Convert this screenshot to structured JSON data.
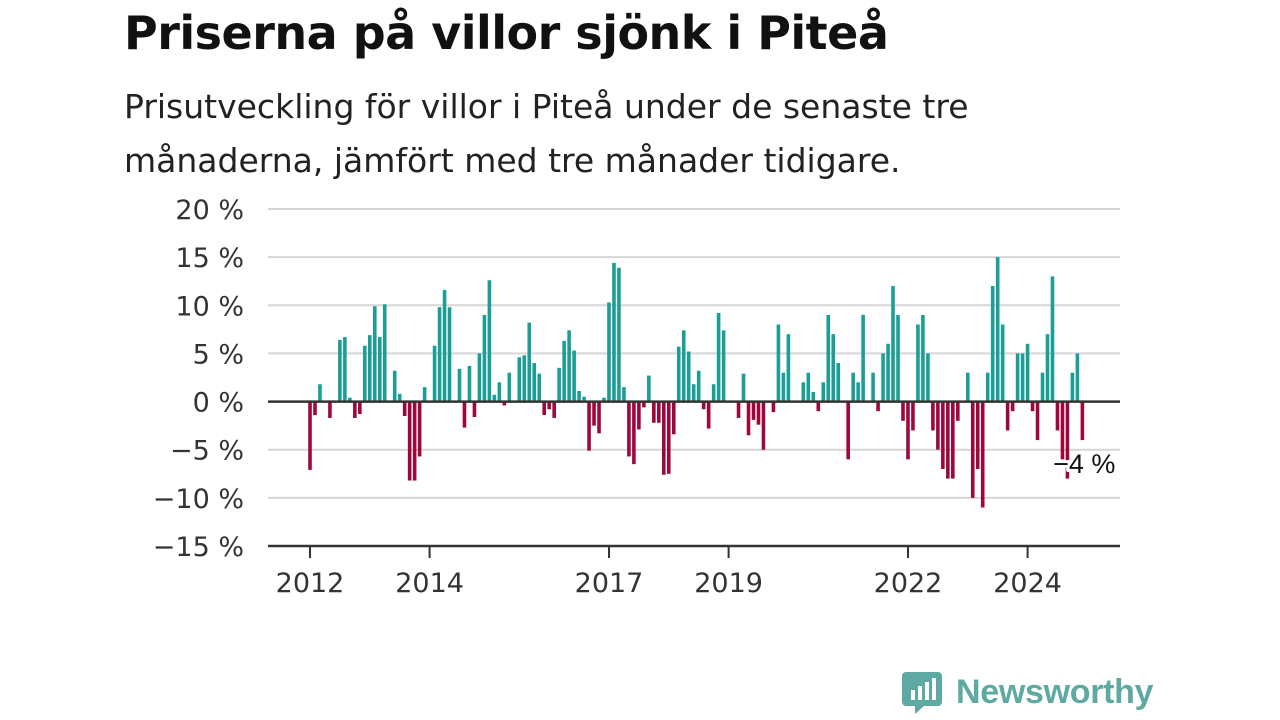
{
  "header": {
    "title": "Priserna på villor sjönk i Piteå",
    "subtitle": "Prisutveckling för villor i Piteå under de senaste tre månaderna, jämfört med tre månader tidigare."
  },
  "brand": {
    "name": "Newsworthy",
    "icon": "newsworthy-logo-icon",
    "color": "#5fa9a3"
  },
  "chart_data": {
    "type": "bar",
    "x_start": 2011.75,
    "x_step": 0.08333,
    "ylim": [
      -15,
      20
    ],
    "yticks": [
      -15,
      -10,
      -5,
      0,
      5,
      10,
      15,
      20
    ],
    "ytick_labels": [
      "−15 %",
      "−10 %",
      "−5 %",
      "0 %",
      "5 %",
      "10 %",
      "15 %",
      "20 %"
    ],
    "xticks": [
      2012,
      2014,
      2017,
      2019,
      2022,
      2024
    ],
    "xtick_labels": [
      "2012",
      "2014",
      "2017",
      "2019",
      "2022",
      "2024"
    ],
    "positive_color": "#1a9e96",
    "negative_color": "#a0063e",
    "grid": true,
    "annotation": {
      "text": "−4 %"
    },
    "values": [
      0,
      0,
      0,
      -7.1,
      -1.4,
      1.8,
      0,
      -1.7,
      0,
      6.4,
      6.7,
      0.4,
      -1.7,
      -1.3,
      5.8,
      6.9,
      9.9,
      6.7,
      10.1,
      0.1,
      3.2,
      0.8,
      -1.5,
      -8.2,
      -8.2,
      -5.7,
      1.5,
      0,
      5.8,
      9.8,
      11.6,
      9.8,
      0,
      3.4,
      -2.7,
      3.7,
      -1.6,
      5.0,
      9.0,
      12.6,
      0.7,
      2.0,
      -0.4,
      3.0,
      0,
      4.6,
      4.8,
      8.2,
      4.0,
      2.9,
      -1.4,
      -0.8,
      -1.7,
      3.5,
      6.3,
      7.4,
      5.3,
      1.1,
      0.5,
      -5.1,
      -2.5,
      -3.3,
      0.4,
      10.3,
      14.4,
      13.9,
      1.5,
      -5.7,
      -6.5,
      -2.9,
      -0.6,
      2.7,
      -2.2,
      -2.2,
      -7.6,
      -7.5,
      -3.4,
      5.7,
      7.4,
      5.2,
      1.8,
      3.2,
      -0.8,
      -2.8,
      1.8,
      9.2,
      7.4,
      0,
      0,
      -1.7,
      2.9,
      -3.5,
      -1.9,
      -2.4,
      -5.0,
      0,
      -1.1,
      8.0,
      3.0,
      7.0,
      0,
      0,
      2.0,
      3.0,
      1.0,
      -1.0,
      2.0,
      9.0,
      7.0,
      4.0,
      0,
      -6.0,
      3.0,
      2.0,
      9.0,
      0,
      3.0,
      -1.0,
      5.0,
      6.0,
      12.0,
      9.0,
      -2.0,
      -6.0,
      -3.0,
      8.0,
      9.0,
      5.0,
      -3.0,
      -5.0,
      -7.0,
      -8.0,
      -8.0,
      -2.0,
      0,
      3.0,
      -10.0,
      -7.0,
      -11.0,
      3.0,
      12.0,
      15.0,
      8.0,
      -3.0,
      -1.0,
      5.0,
      5.0,
      6.0,
      -1.0,
      -4.0,
      3.0,
      7.0,
      13.0,
      -3.0,
      -6.0,
      -8.0,
      3.0,
      5.0,
      -4.0
    ]
  }
}
